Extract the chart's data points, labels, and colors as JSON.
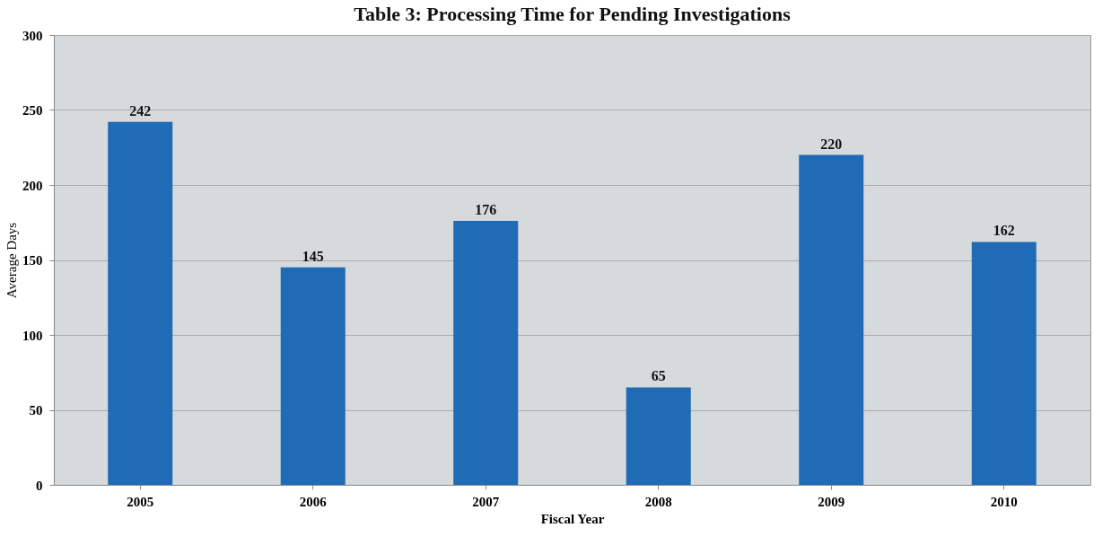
{
  "chart_data": {
    "type": "bar",
    "title": "Table 3: Processing Time for Pending Investigations",
    "xlabel": "Fiscal Year",
    "ylabel": "Average Days",
    "categories": [
      "2005",
      "2006",
      "2007",
      "2008",
      "2009",
      "2010"
    ],
    "values": [
      242,
      145,
      176,
      65,
      220,
      162
    ],
    "color": "#1f6bb5",
    "ylim": [
      0,
      300
    ],
    "yticks": [
      0,
      50,
      100,
      150,
      200,
      250,
      300
    ],
    "grid": "y",
    "data_labels": true
  }
}
